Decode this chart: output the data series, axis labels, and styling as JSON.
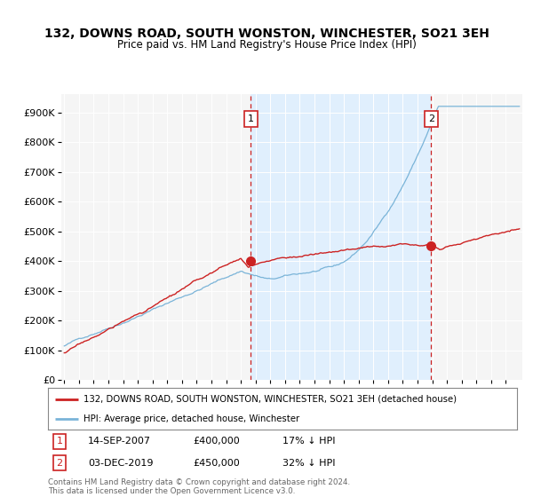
{
  "title": "132, DOWNS ROAD, SOUTH WONSTON, WINCHESTER, SO21 3EH",
  "subtitle": "Price paid vs. HM Land Registry's House Price Index (HPI)",
  "ytick_values": [
    0,
    100000,
    200000,
    300000,
    400000,
    500000,
    600000,
    700000,
    800000,
    900000
  ],
  "ylim": [
    0,
    960000
  ],
  "sale1_year": 2007,
  "sale1_month": 9,
  "sale1_price": 400000,
  "sale2_year": 2019,
  "sale2_month": 12,
  "sale2_price": 450000,
  "legend_line1": "132, DOWNS ROAD, SOUTH WONSTON, WINCHESTER, SO21 3EH (detached house)",
  "legend_line2": "HPI: Average price, detached house, Winchester",
  "note1_num": "1",
  "note1_date": "14-SEP-2007",
  "note1_price": "£400,000",
  "note1_hpi": "17% ↓ HPI",
  "note2_num": "2",
  "note2_date": "03-DEC-2019",
  "note2_price": "£450,000",
  "note2_hpi": "32% ↓ HPI",
  "footer": "Contains HM Land Registry data © Crown copyright and database right 2024.\nThis data is licensed under the Open Government Licence v3.0.",
  "hpi_color": "#7ab4d8",
  "price_color": "#cc2222",
  "shade_color": "#ddeeff",
  "background_color": "#ffffff",
  "plot_bg_color": "#f5f5f5",
  "start_year": 1995,
  "end_year": 2025
}
